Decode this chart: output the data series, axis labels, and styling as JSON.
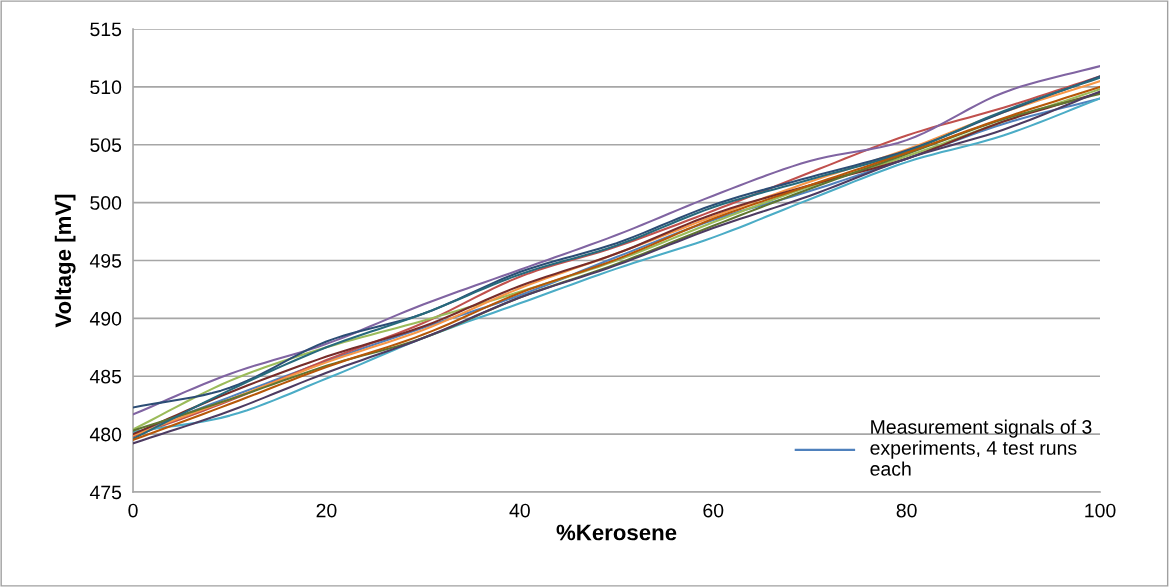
{
  "chart_data": {
    "type": "line",
    "xlabel": "%Kerosene",
    "ylabel": "Voltage [mV]",
    "x": [
      0,
      10,
      20,
      30,
      40,
      50,
      60,
      70,
      80,
      90,
      100
    ],
    "xlim": [
      0,
      100
    ],
    "xticks": [
      0,
      20,
      40,
      60,
      80,
      100
    ],
    "ylim": [
      475,
      515
    ],
    "yticks": [
      475,
      480,
      485,
      490,
      495,
      500,
      505,
      510,
      515
    ],
    "grid": "y",
    "legend": "bottom right",
    "marker": "none",
    "line_style": "solid",
    "series": [
      {
        "name": "Measurement signals of 3 experiments, 4 test runs each",
        "color": "#4f81bd",
        "values": [
          480.0,
          483.2,
          486.3,
          489.2,
          492.0,
          495.3,
          498.5,
          501.0,
          503.8,
          506.8,
          509.0
        ]
      },
      {
        "color": "#c0504d",
        "values": [
          479.8,
          482.9,
          486.4,
          489.6,
          493.6,
          496.2,
          499.3,
          502.6,
          505.8,
          508.2,
          510.9
        ]
      },
      {
        "color": "#9bbb59",
        "values": [
          480.4,
          484.6,
          487.5,
          489.8,
          492.3,
          495.0,
          498.3,
          501.4,
          504.0,
          507.0,
          509.8
        ]
      },
      {
        "color": "#8064a2",
        "values": [
          481.7,
          485.2,
          487.8,
          491.2,
          494.2,
          497.2,
          500.6,
          503.6,
          505.4,
          509.5,
          511.8
        ]
      },
      {
        "color": "#4bacc6",
        "values": [
          480.2,
          481.6,
          484.8,
          488.3,
          491.3,
          494.3,
          497.0,
          500.3,
          503.5,
          505.8,
          509.0
        ]
      },
      {
        "color": "#f79646",
        "values": [
          479.9,
          483.0,
          486.2,
          489.0,
          492.6,
          495.6,
          498.8,
          501.8,
          504.6,
          507.8,
          510.5
        ]
      },
      {
        "color": "#2c4d75",
        "values": [
          482.3,
          484.0,
          488.0,
          490.4,
          494.0,
          496.5,
          499.8,
          502.2,
          504.5,
          507.8,
          510.9
        ]
      },
      {
        "color": "#772c2a",
        "values": [
          480.0,
          483.6,
          486.7,
          489.3,
          492.8,
          495.6,
          499.0,
          501.5,
          503.8,
          507.0,
          509.5
        ]
      },
      {
        "color": "#5f7530",
        "values": [
          480.3,
          483.0,
          485.9,
          488.3,
          491.8,
          494.7,
          498.0,
          501.2,
          504.2,
          507.2,
          509.4
        ]
      },
      {
        "color": "#4d3b62",
        "values": [
          479.2,
          482.0,
          485.3,
          488.3,
          491.8,
          494.6,
          497.8,
          500.6,
          503.8,
          506.3,
          509.6
        ]
      },
      {
        "color": "#276a7c",
        "values": [
          479.6,
          483.8,
          487.5,
          490.4,
          493.8,
          496.3,
          499.6,
          502.0,
          504.4,
          507.9,
          510.8
        ]
      },
      {
        "color": "#b65708",
        "values": [
          479.5,
          482.6,
          485.8,
          488.6,
          492.2,
          495.1,
          498.6,
          501.5,
          504.3,
          507.3,
          510.0
        ]
      }
    ]
  }
}
